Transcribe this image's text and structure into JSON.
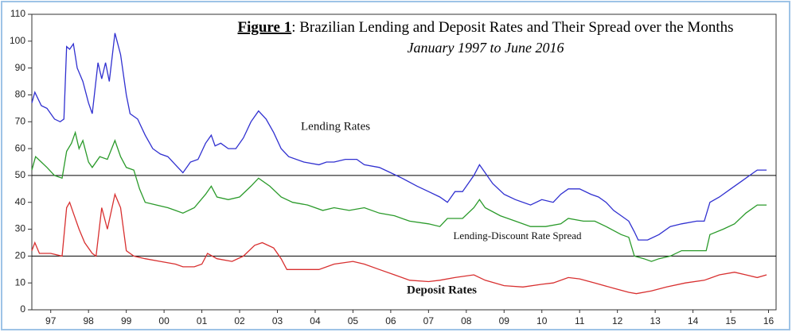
{
  "chart_data": {
    "type": "line",
    "title_prefix": "Figure 1",
    "title": ": Brazilian Lending and Deposit Rates and Their Spread over the Months",
    "subtitle": "January 1997 to June 2016",
    "xlim": [
      1997,
      2016.7
    ],
    "ylim": [
      0,
      110
    ],
    "yticks": [
      0,
      10,
      20,
      30,
      40,
      50,
      60,
      70,
      80,
      90,
      100,
      110
    ],
    "xticks": [
      {
        "value": 1997.5,
        "label": "97"
      },
      {
        "value": 1998.5,
        "label": "98"
      },
      {
        "value": 1999.5,
        "label": "99"
      },
      {
        "value": 2000.5,
        "label": "00"
      },
      {
        "value": 2001.5,
        "label": "01"
      },
      {
        "value": 2002.5,
        "label": "02"
      },
      {
        "value": 2003.5,
        "label": "03"
      },
      {
        "value": 2004.5,
        "label": "04"
      },
      {
        "value": 2005.5,
        "label": "05"
      },
      {
        "value": 2006.5,
        "label": "06"
      },
      {
        "value": 2007.5,
        "label": "07"
      },
      {
        "value": 2008.5,
        "label": "08"
      },
      {
        "value": 2009.5,
        "label": "09"
      },
      {
        "value": 2010.5,
        "label": "10"
      },
      {
        "value": 2011.5,
        "label": "11"
      },
      {
        "value": 2012.5,
        "label": "12"
      },
      {
        "value": 2013.5,
        "label": "13"
      },
      {
        "value": 2014.5,
        "label": "14"
      },
      {
        "value": 2015.5,
        "label": "15"
      },
      {
        "value": 2016.5,
        "label": "16"
      }
    ],
    "reference_lines": [
      50,
      20
    ],
    "series": [
      {
        "name": "Lending Rates",
        "color": "#3030d0",
        "x": [
          1997.0,
          1997.08,
          1997.25,
          1997.4,
          1997.6,
          1997.75,
          1997.85,
          1997.92,
          1998.0,
          1998.1,
          1998.2,
          1998.35,
          1998.5,
          1998.6,
          1998.75,
          1998.85,
          1998.95,
          1999.05,
          1999.2,
          1999.35,
          1999.5,
          1999.6,
          1999.8,
          2000.0,
          2000.2,
          2000.4,
          2000.6,
          2000.8,
          2001.0,
          2001.2,
          2001.4,
          2001.6,
          2001.75,
          2001.85,
          2002.0,
          2002.2,
          2002.4,
          2002.6,
          2002.8,
          2003.0,
          2003.2,
          2003.4,
          2003.6,
          2003.8,
          2004.2,
          2004.6,
          2004.8,
          2005.0,
          2005.3,
          2005.6,
          2005.8,
          2006.2,
          2006.5,
          2006.8,
          2007.2,
          2007.5,
          2007.8,
          2008.0,
          2008.2,
          2008.4,
          2008.7,
          2008.85,
          2009.0,
          2009.2,
          2009.5,
          2009.8,
          2010.2,
          2010.5,
          2010.8,
          2011.0,
          2011.2,
          2011.5,
          2011.8,
          2012.0,
          2012.2,
          2012.4,
          2012.6,
          2012.8,
          2012.95,
          2013.05,
          2013.3,
          2013.6,
          2013.9,
          2014.2,
          2014.6,
          2014.8,
          2014.95,
          2015.2,
          2015.5,
          2015.8,
          2016.0,
          2016.2,
          2016.45
        ],
        "values": [
          77,
          81,
          76,
          75,
          71,
          70,
          71,
          98,
          97,
          99,
          90,
          85,
          77,
          73,
          92,
          86,
          92,
          85,
          103,
          95,
          80,
          73,
          71,
          65,
          60,
          58,
          57,
          54,
          51,
          55,
          56,
          62,
          65,
          61,
          62,
          60,
          60,
          64,
          70,
          74,
          71,
          66,
          60,
          57,
          55,
          54,
          55,
          55,
          56,
          56,
          54,
          53,
          51,
          49,
          46,
          44,
          42,
          40,
          44,
          44,
          50,
          54,
          51,
          47,
          43,
          41,
          39,
          41,
          40,
          43,
          45,
          45,
          43,
          42,
          40,
          37,
          35,
          33,
          29,
          26,
          26,
          28,
          31,
          32,
          33,
          33,
          40,
          42,
          45,
          48,
          50,
          52,
          52
        ]
      },
      {
        "name": "Lending-Discount Rate Spread",
        "color": "#2a9a2a",
        "x": [
          1997.0,
          1997.1,
          1997.25,
          1997.4,
          1997.6,
          1997.8,
          1997.92,
          1998.05,
          1998.15,
          1998.25,
          1998.35,
          1998.5,
          1998.6,
          1998.8,
          1999.0,
          1999.2,
          1999.35,
          1999.5,
          1999.7,
          1999.85,
          2000.0,
          2000.3,
          2000.6,
          2000.8,
          2001.0,
          2001.3,
          2001.6,
          2001.75,
          2001.9,
          2002.2,
          2002.5,
          2002.8,
          2003.0,
          2003.3,
          2003.6,
          2003.9,
          2004.3,
          2004.7,
          2005.0,
          2005.4,
          2005.8,
          2006.2,
          2006.6,
          2007.0,
          2007.5,
          2007.8,
          2008.0,
          2008.4,
          2008.7,
          2008.85,
          2009.0,
          2009.4,
          2009.8,
          2010.2,
          2010.6,
          2011.0,
          2011.2,
          2011.6,
          2011.9,
          2012.2,
          2012.6,
          2012.8,
          2012.95,
          2013.2,
          2013.4,
          2013.6,
          2013.9,
          2014.2,
          2014.6,
          2014.85,
          2014.95,
          2015.3,
          2015.6,
          2015.9,
          2016.2,
          2016.45
        ],
        "values": [
          52,
          57,
          55,
          53,
          50,
          49,
          59,
          62,
          66,
          60,
          63,
          55,
          53,
          57,
          56,
          63,
          57,
          53,
          52,
          45,
          40,
          39,
          38,
          37,
          36,
          38,
          43,
          46,
          42,
          41,
          42,
          46,
          49,
          46,
          42,
          40,
          39,
          37,
          38,
          37,
          38,
          36,
          35,
          33,
          32,
          31,
          34,
          34,
          38,
          41,
          38,
          35,
          33,
          31,
          31,
          32,
          34,
          33,
          33,
          31,
          28,
          27,
          20,
          19,
          18,
          19,
          20,
          22,
          22,
          22,
          28,
          30,
          32,
          36,
          39,
          39
        ]
      },
      {
        "name": "Deposit Rates",
        "color": "#d83030",
        "x": [
          1997.0,
          1997.08,
          1997.2,
          1997.5,
          1997.8,
          1997.92,
          1998.0,
          1998.1,
          1998.25,
          1998.4,
          1998.6,
          1998.7,
          1998.85,
          1999.0,
          1999.2,
          1999.35,
          1999.5,
          1999.7,
          2000.0,
          2000.4,
          2000.8,
          2001.0,
          2001.3,
          2001.5,
          2001.65,
          2001.9,
          2002.3,
          2002.6,
          2002.9,
          2003.1,
          2003.4,
          2003.6,
          2003.75,
          2004.2,
          2004.6,
          2005.0,
          2005.5,
          2005.8,
          2006.2,
          2006.6,
          2007.0,
          2007.5,
          2007.8,
          2008.2,
          2008.7,
          2009.0,
          2009.5,
          2010.0,
          2010.5,
          2010.8,
          2011.2,
          2011.5,
          2011.9,
          2012.4,
          2012.8,
          2013.0,
          2013.4,
          2013.8,
          2014.3,
          2014.8,
          2015.2,
          2015.6,
          2015.9,
          2016.2,
          2016.45
        ],
        "values": [
          22,
          25,
          21,
          21,
          20,
          38,
          40,
          36,
          30,
          25,
          21,
          20,
          38,
          30,
          43,
          38,
          22,
          20,
          19,
          18,
          17,
          16,
          16,
          17,
          21,
          19,
          18,
          20,
          24,
          25,
          23,
          19,
          15,
          15,
          15,
          17,
          18,
          17,
          15,
          13,
          11,
          10.5,
          11,
          12,
          13,
          11,
          9,
          8.5,
          9.5,
          10,
          12,
          11.5,
          10,
          8,
          6.5,
          6,
          7,
          8.5,
          10,
          11,
          13,
          14,
          13,
          12,
          13
        ]
      }
    ]
  }
}
